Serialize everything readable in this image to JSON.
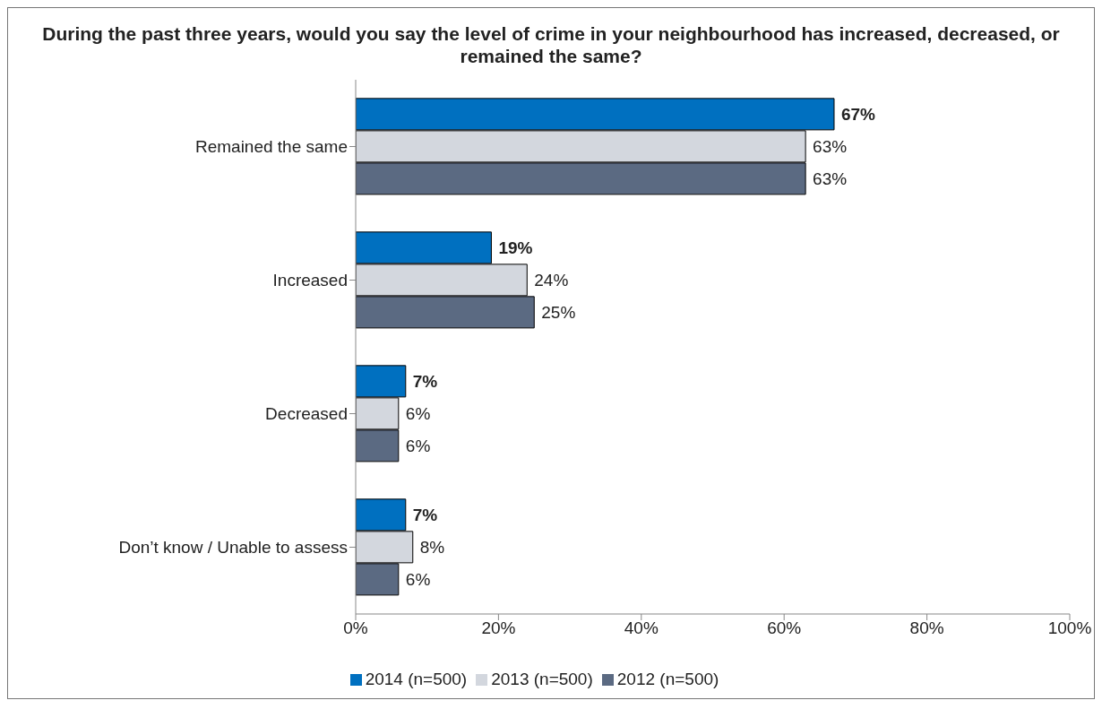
{
  "chart_data": {
    "type": "bar",
    "orientation": "horizontal",
    "title": "During the past three years, would you say the level of crime in your neighbourhood has increased, decreased, or remained the same?",
    "categories": [
      "Remained the same",
      "Increased",
      "Decreased",
      "Don’t know / Unable to assess"
    ],
    "series": [
      {
        "name": "2014 (n=500)",
        "color": "#0070c0",
        "values": [
          67,
          19,
          7,
          7
        ],
        "value_labels": [
          "67%",
          "19%",
          "7%",
          "7%"
        ]
      },
      {
        "name": "2013 (n=500)",
        "color": "#d3d7de",
        "values": [
          63,
          24,
          6,
          8
        ],
        "value_labels": [
          "63%",
          "24%",
          "6%",
          "8%"
        ]
      },
      {
        "name": "2012 (n=500)",
        "color": "#5b6a82",
        "values": [
          63,
          25,
          6,
          6
        ],
        "value_labels": [
          "63%",
          "25%",
          "6%",
          "6%"
        ]
      }
    ],
    "xlim": [
      0,
      100
    ],
    "xticks": [
      {
        "value": 0,
        "label": "0%"
      },
      {
        "value": 20,
        "label": "20%"
      },
      {
        "value": 40,
        "label": "40%"
      },
      {
        "value": 60,
        "label": "60%"
      },
      {
        "value": 80,
        "label": "80%"
      },
      {
        "value": 100,
        "label": "100%"
      }
    ],
    "legend": "bottom"
  }
}
